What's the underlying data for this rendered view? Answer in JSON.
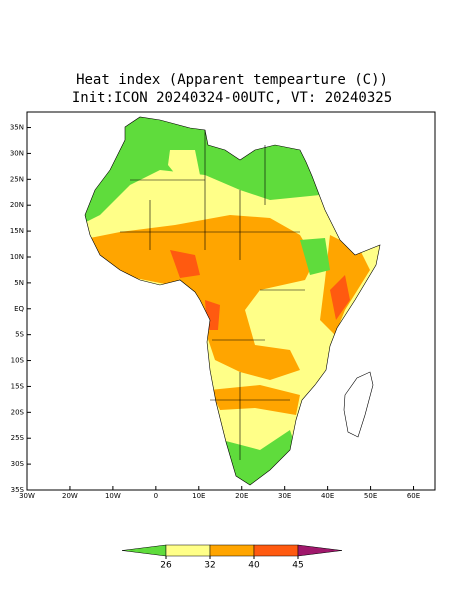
{
  "chart_data": {
    "type": "map",
    "title": "Heat index (Apparent tempearture (C))",
    "subtitle": "Init:ICON 20240324-00UTC, VT: 20240325",
    "xlim": [
      -30,
      65
    ],
    "ylim": [
      -35,
      38
    ],
    "xticks": [
      {
        "value": -30,
        "label": "30W"
      },
      {
        "value": -20,
        "label": "20W"
      },
      {
        "value": -10,
        "label": "10W"
      },
      0,
      {
        "value": 10,
        "label": "10E"
      },
      {
        "value": 20,
        "label": "20E"
      },
      {
        "value": 30,
        "label": "30E"
      },
      {
        "value": 40,
        "label": "40E"
      },
      {
        "value": 50,
        "label": "50E"
      },
      {
        "value": 60,
        "label": "60E"
      }
    ],
    "yticks": [
      {
        "value": 35,
        "label": "35N"
      },
      {
        "value": 30,
        "label": "30N"
      },
      {
        "value": 25,
        "label": "25N"
      },
      {
        "value": 20,
        "label": "20N"
      },
      {
        "value": 15,
        "label": "15N"
      },
      {
        "value": 10,
        "label": "10N"
      },
      {
        "value": 5,
        "label": "5N"
      },
      {
        "value": 0,
        "label": "EQ"
      },
      {
        "value": -5,
        "label": "5S"
      },
      {
        "value": -10,
        "label": "10S"
      },
      {
        "value": -15,
        "label": "15S"
      },
      {
        "value": -20,
        "label": "20S"
      },
      {
        "value": -25,
        "label": "25S"
      },
      {
        "value": -30,
        "label": "30S"
      },
      {
        "value": -35,
        "label": "35S"
      }
    ],
    "colorbar": {
      "levels": [
        26,
        32,
        40,
        45
      ],
      "colors": [
        "#5fdc3c",
        "#ffff88",
        "#ffa500",
        "#ff5a10",
        "#a0186c"
      ]
    }
  }
}
